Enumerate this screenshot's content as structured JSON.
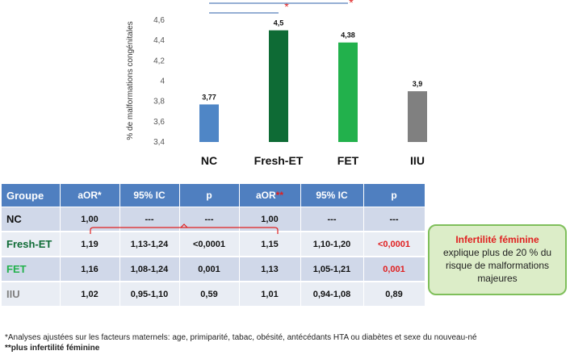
{
  "chart_data": {
    "type": "bar",
    "categories": [
      "NC",
      "Fresh-ET",
      "FET",
      "IIU"
    ],
    "values": [
      3.77,
      4.5,
      4.38,
      3.9
    ],
    "value_labels": [
      "3,77",
      "4,5",
      "4,38",
      "3,9"
    ],
    "colors": [
      "#4f86c6",
      "#0e6b35",
      "#22b14c",
      "#808080"
    ],
    "ylabel": "% de malformations congénitales",
    "ylim": [
      3.4,
      4.6
    ],
    "yticks": [
      "3,4",
      "3,6",
      "3,8",
      "4",
      "4,2",
      "4,4",
      "4,6"
    ],
    "grid": false,
    "significance": [
      {
        "from": "NC",
        "to": "Fresh-ET",
        "mark": "*"
      },
      {
        "from": "NC",
        "to": "FET",
        "mark": "*"
      }
    ]
  },
  "table": {
    "headers": [
      "Groupe",
      "aOR*",
      "95% IC",
      "p",
      "aOR",
      "95% IC",
      "p"
    ],
    "header_extra": "**",
    "rows": [
      {
        "group": "NC",
        "group_color": "#111111",
        "cells": [
          "1,00",
          "---",
          "---",
          "1,00",
          "---",
          "---"
        ],
        "p2_color": "#111111"
      },
      {
        "group": "Fresh-ET",
        "group_color": "#0e6b35",
        "cells": [
          "1,19",
          "1,13-1,24",
          "<0,0001",
          "1,15",
          "1,10-1,20",
          "<0,0001"
        ],
        "p2_color": "#e02020"
      },
      {
        "group": "FET",
        "group_color": "#22b14c",
        "cells": [
          "1,16",
          "1,08-1,24",
          "0,001",
          "1,13",
          "1,05-1,21",
          "0,001"
        ],
        "p2_color": "#e02020"
      },
      {
        "group": "IIU",
        "group_color": "#808080",
        "cells": [
          "1,02",
          "0,95-1,10",
          "0,59",
          "1,01",
          "0,94-1,08",
          "0,89"
        ],
        "p2_color": "#111111"
      }
    ]
  },
  "callout": {
    "highlight": "Infertilité féminine",
    "text": "explique plus de 20 % du risque de malformations majeures"
  },
  "footnote": {
    "line1": "*Analyses ajustées sur les facteurs maternels: age, primiparité, tabac, obésité, antécédants HTA ou diabètes et sexe du nouveau-né",
    "line2_prefix": "**",
    "line2": "plus infertilité féminine"
  }
}
